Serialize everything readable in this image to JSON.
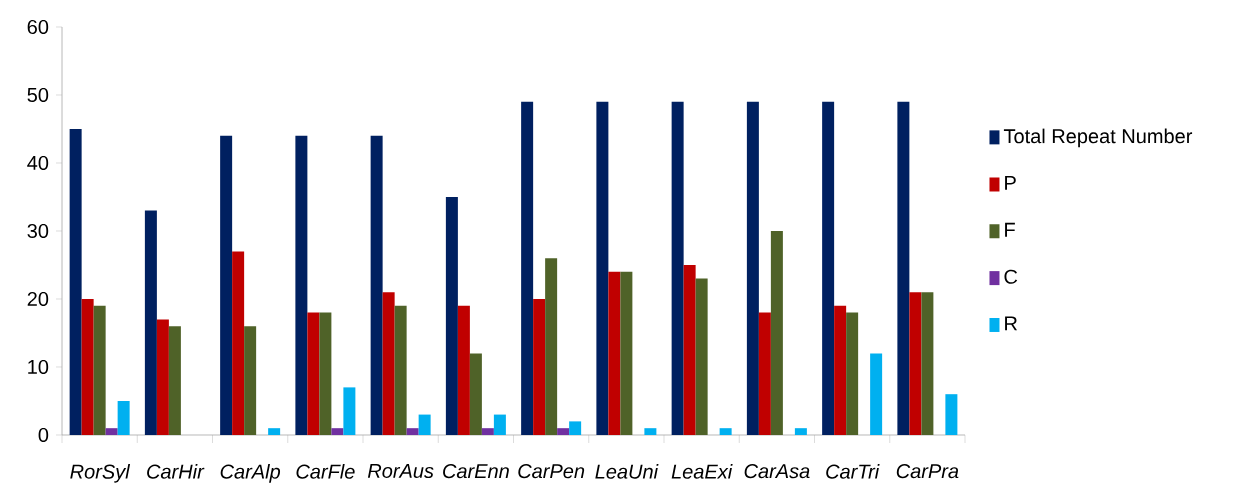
{
  "chart_data": {
    "type": "bar",
    "categories": [
      "RorSyl",
      "CarHir",
      "CarAlp",
      "CarFle",
      "RorAus",
      "CarEnn",
      "CarPen",
      "LeaUni",
      "LeaExi",
      "CarAsa",
      "CarTri",
      "CarPra"
    ],
    "series": [
      {
        "name": "Total Repeat Number",
        "color": "#002060",
        "values": [
          45,
          33,
          44,
          44,
          44,
          35,
          49,
          49,
          49,
          49,
          49,
          49
        ]
      },
      {
        "name": "P",
        "color": "#c00000",
        "values": [
          20,
          17,
          27,
          18,
          21,
          19,
          20,
          24,
          25,
          18,
          19,
          21
        ]
      },
      {
        "name": "F",
        "color": "#4f6228",
        "values": [
          19,
          16,
          16,
          18,
          19,
          12,
          26,
          24,
          23,
          30,
          18,
          21
        ]
      },
      {
        "name": "C",
        "color": "#7030a0",
        "values": [
          1,
          0,
          0,
          1,
          1,
          1,
          1,
          0,
          0,
          0,
          0,
          0
        ]
      },
      {
        "name": "R",
        "color": "#00b0f0",
        "values": [
          5,
          0,
          1,
          7,
          3,
          3,
          2,
          1,
          1,
          1,
          12,
          6
        ]
      }
    ],
    "ylim": [
      0,
      60
    ],
    "yticks": [
      0,
      10,
      20,
      30,
      40,
      50,
      60
    ],
    "grid": false,
    "legend": "right"
  }
}
